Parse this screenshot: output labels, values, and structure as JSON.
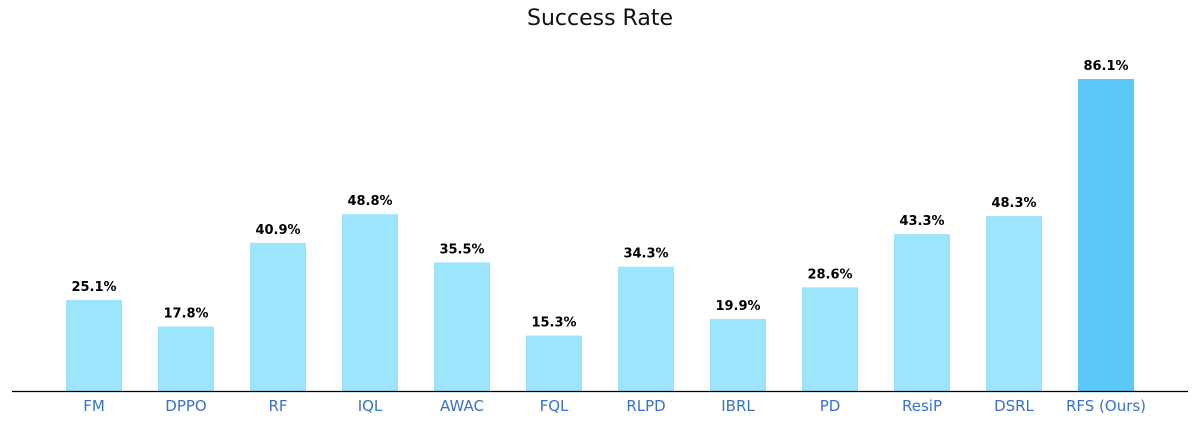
{
  "chart_data": {
    "type": "bar",
    "title": "Success Rate",
    "xlabel": "",
    "ylabel": "",
    "ylim": [
      0,
      100
    ],
    "grid": false,
    "categories": [
      "FM",
      "DPPO",
      "RF",
      "IQL",
      "AWAC",
      "FQL",
      "RLPD",
      "IBRL",
      "PD",
      "ResiP",
      "DSRL",
      "RFS (Ours)"
    ],
    "values": [
      25.1,
      17.8,
      40.9,
      48.8,
      35.5,
      15.3,
      34.3,
      19.9,
      28.6,
      43.3,
      48.3,
      86.1
    ],
    "value_labels": [
      "25.1%",
      "17.8%",
      "40.9%",
      "48.8%",
      "35.5%",
      "15.3%",
      "34.3%",
      "19.9%",
      "28.6%",
      "43.3%",
      "48.3%",
      "86.1%"
    ],
    "highlight_index": 11
  },
  "colors": {
    "bar": "#9de5fc",
    "highlight_bar": "#5bc8f8",
    "tick_label": "#3a72c6",
    "axis": "#000000"
  }
}
